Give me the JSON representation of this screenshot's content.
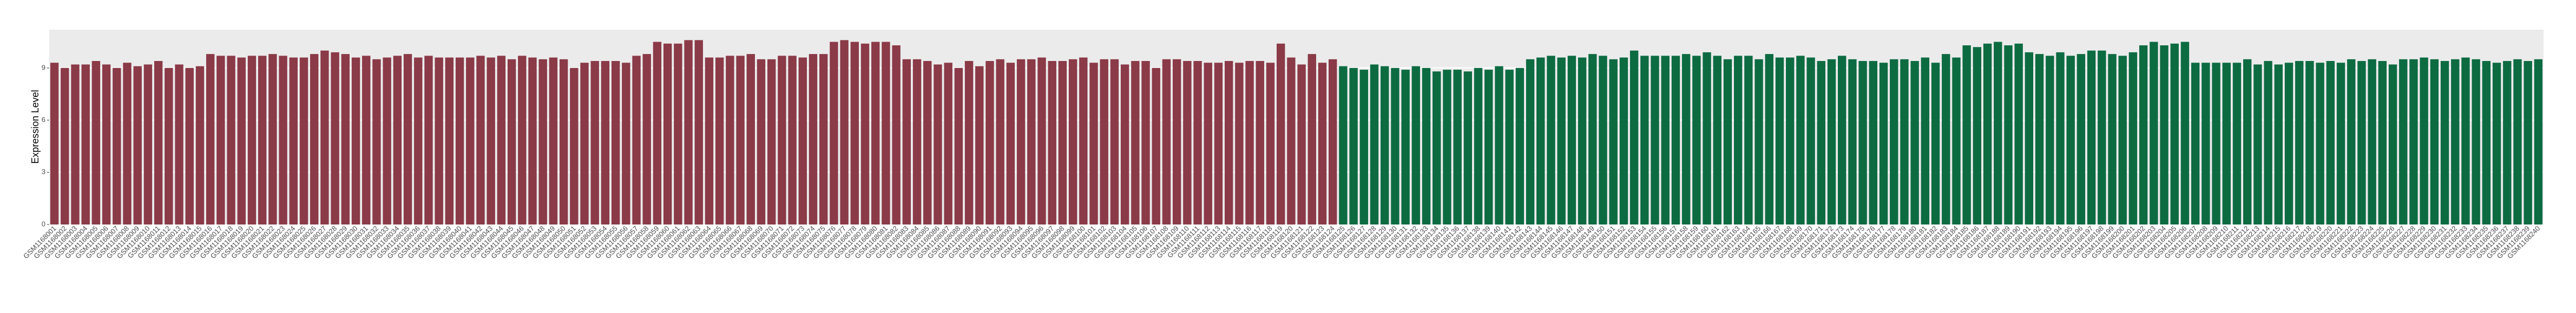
{
  "chart_data": {
    "type": "bar",
    "y_label": "Expression Level",
    "ylim": [
      0,
      11.2
    ],
    "yticks": [
      0,
      3,
      6,
      9
    ],
    "grid": true,
    "categories": [
      "GSM1168001",
      "GSM1168002",
      "GSM1168003",
      "GSM1168004",
      "GSM1168005",
      "GSM1168006",
      "GSM1168007",
      "GSM1168008",
      "GSM1168009",
      "GSM1168010",
      "GSM1168011",
      "GSM1168012",
      "GSM1168013",
      "GSM1168014",
      "GSM1168015",
      "GSM1168016",
      "GSM1168017",
      "GSM1168018",
      "GSM1168019",
      "GSM1168020",
      "GSM1168021",
      "GSM1168022",
      "GSM1168023",
      "GSM1168024",
      "GSM1168025",
      "GSM1168026",
      "GSM1168027",
      "GSM1168028",
      "GSM1168029",
      "GSM1168030",
      "GSM1168031",
      "GSM1168032",
      "GSM1168033",
      "GSM1168034",
      "GSM1168035",
      "GSM1168036",
      "GSM1168037",
      "GSM1168038",
      "GSM1168039",
      "GSM1168040",
      "GSM1168041",
      "GSM1168042",
      "GSM1168043",
      "GSM1168044",
      "GSM1168045",
      "GSM1168046",
      "GSM1168047",
      "GSM1168048",
      "GSM1168049",
      "GSM1168050",
      "GSM1168051",
      "GSM1168052",
      "GSM1168053",
      "GSM1168054",
      "GSM1168055",
      "GSM1168056",
      "GSM1168057",
      "GSM1168058",
      "GSM1168059",
      "GSM1168060",
      "GSM1168061",
      "GSM1168062",
      "GSM1168063",
      "GSM1168064",
      "GSM1168065",
      "GSM1168066",
      "GSM1168067",
      "GSM1168068",
      "GSM1168069",
      "GSM1168070",
      "GSM1168071",
      "GSM1168072",
      "GSM1168073",
      "GSM1168074",
      "GSM1168075",
      "GSM1168076",
      "GSM1168077",
      "GSM1168078",
      "GSM1168079",
      "GSM1168080",
      "GSM1168081",
      "GSM1168082",
      "GSM1168083",
      "GSM1168084",
      "GSM1168085",
      "GSM1168086",
      "GSM1168087",
      "GSM1168088",
      "GSM1168089",
      "GSM1168090",
      "GSM1168091",
      "GSM1168092",
      "GSM1168093",
      "GSM1168094",
      "GSM1168095",
      "GSM1168096",
      "GSM1168097",
      "GSM1168098",
      "GSM1168099",
      "GSM1168100",
      "GSM1168101",
      "GSM1168102",
      "GSM1168103",
      "GSM1168104",
      "GSM1168105",
      "GSM1168106",
      "GSM1168107",
      "GSM1168108",
      "GSM1168109",
      "GSM1168110",
      "GSM1168111",
      "GSM1168112",
      "GSM1168113",
      "GSM1168114",
      "GSM1168115",
      "GSM1168116",
      "GSM1168117",
      "GSM1168118",
      "GSM1168119",
      "GSM1168120",
      "GSM1168121",
      "GSM1168122",
      "GSM1168123",
      "GSM1168124",
      "GSM1168125",
      "GSM1168126",
      "GSM1168127",
      "GSM1168128",
      "GSM1168129",
      "GSM1168130",
      "GSM1168131",
      "GSM1168132",
      "GSM1168133",
      "GSM1168134",
      "GSM1168135",
      "GSM1168136",
      "GSM1168137",
      "GSM1168138",
      "GSM1168139",
      "GSM1168140",
      "GSM1168141",
      "GSM1168142",
      "GSM1168143",
      "GSM1168144",
      "GSM1168145",
      "GSM1168146",
      "GSM1168147",
      "GSM1168148",
      "GSM1168149",
      "GSM1168150",
      "GSM1168151",
      "GSM1168152",
      "GSM1168153",
      "GSM1168154",
      "GSM1168155",
      "GSM1168156",
      "GSM1168157",
      "GSM1168158",
      "GSM1168159",
      "GSM1168160",
      "GSM1168161",
      "GSM1168162",
      "GSM1168163",
      "GSM1168164",
      "GSM1168165",
      "GSM1168166",
      "GSM1168167",
      "GSM1168168",
      "GSM1168169",
      "GSM1168170",
      "GSM1168171",
      "GSM1168172",
      "GSM1168173",
      "GSM1168174",
      "GSM1168175",
      "GSM1168176",
      "GSM1168177",
      "GSM1168178",
      "GSM1168179",
      "GSM1168180",
      "GSM1168181",
      "GSM1168182",
      "GSM1168183",
      "GSM1168184",
      "GSM1168185",
      "GSM1168186",
      "GSM1168187",
      "GSM1168188",
      "GSM1168189",
      "GSM1168190",
      "GSM1168191",
      "GSM1168192",
      "GSM1168193",
      "GSM1168194",
      "GSM1168195",
      "GSM1168196",
      "GSM1168197",
      "GSM1168198",
      "GSM1168199",
      "GSM1168200",
      "GSM1168201",
      "GSM1168202",
      "GSM1168203",
      "GSM1168204",
      "GSM1168205",
      "GSM1168206",
      "GSM1168207",
      "GSM1168208",
      "GSM1168209",
      "GSM1168210",
      "GSM1168211",
      "GSM1168212",
      "GSM1168213",
      "GSM1168214",
      "GSM1168215",
      "GSM1168216",
      "GSM1168217",
      "GSM1168218",
      "GSM1168219",
      "GSM1168220",
      "GSM1168221",
      "GSM1168222",
      "GSM1168223",
      "GSM1168224",
      "GSM1168225",
      "GSM1168226",
      "GSM1168227",
      "GSM1168228",
      "GSM1168229",
      "GSM1168230",
      "GSM1168231",
      "GSM1168232",
      "GSM1168233",
      "GSM1168234",
      "GSM1168235",
      "GSM1168236",
      "GSM1168237",
      "GSM1168238",
      "GSM1168239",
      "GSM1168240"
    ],
    "series": [
      {
        "color": "#8b3a48",
        "values": [
          9.3,
          9.0,
          9.2,
          9.2,
          9.4,
          9.2,
          9.0,
          9.3,
          9.1,
          9.2,
          9.4,
          9.0,
          9.2,
          9.0,
          9.1,
          9.8,
          9.7,
          9.7,
          9.6,
          9.7,
          9.7,
          9.8,
          9.7,
          9.6,
          9.6,
          9.8,
          10.0,
          9.9,
          9.8,
          9.6,
          9.7,
          9.5,
          9.6,
          9.7,
          9.8,
          9.6,
          9.7,
          9.6,
          9.6,
          9.6,
          9.6,
          9.7,
          9.6,
          9.7,
          9.5,
          9.7,
          9.6,
          9.5,
          9.6,
          9.5,
          9.0,
          9.3,
          9.4,
          9.4,
          9.4,
          9.3,
          9.7,
          9.8,
          10.5,
          10.4,
          10.4,
          10.6,
          10.6,
          9.6,
          9.6,
          9.7,
          9.7,
          9.8,
          9.5,
          9.5,
          9.7,
          9.7,
          9.6,
          9.8,
          9.8,
          10.5,
          10.6,
          10.5,
          10.4,
          10.5,
          10.5,
          10.3,
          9.5,
          9.5,
          9.4,
          9.2,
          9.3,
          9.0,
          9.4,
          9.1,
          9.4,
          9.5,
          9.3,
          9.5,
          9.5,
          9.6,
          9.4,
          9.4,
          9.5,
          9.6,
          9.3,
          9.5,
          9.5,
          9.2,
          9.4,
          9.4,
          9.0,
          9.5,
          9.5,
          9.4,
          9.4,
          9.3,
          9.3,
          9.4,
          9.3,
          9.4,
          9.4,
          9.3,
          10.4,
          9.6,
          9.2,
          9.8,
          9.3,
          9.5,
          null,
          null,
          null,
          null,
          null,
          null,
          null,
          null,
          null,
          null,
          null,
          null,
          null,
          null,
          null,
          null,
          null,
          null,
          null,
          null,
          null,
          null,
          null,
          null,
          null,
          null,
          null,
          null,
          null,
          null,
          null,
          null,
          null,
          null,
          null,
          null,
          null,
          null,
          null,
          null,
          null,
          null,
          null,
          null,
          null,
          null,
          null,
          null,
          null,
          null,
          null,
          null,
          null,
          null,
          null,
          null,
          null,
          null,
          null,
          null,
          null,
          null,
          null,
          null,
          null,
          null,
          null,
          null,
          null,
          null,
          null,
          null,
          null,
          null,
          null,
          null,
          null,
          null,
          null,
          null,
          null,
          null,
          null,
          null,
          null,
          null,
          null,
          null,
          null,
          null,
          null,
          null,
          null,
          null,
          null,
          null,
          null,
          null,
          null,
          null,
          null,
          null,
          null,
          null,
          null,
          null,
          null,
          null,
          null,
          null,
          null,
          null,
          null,
          null,
          null,
          null
        ]
      },
      {
        "color": "#0d6b42",
        "values": [
          null,
          null,
          null,
          null,
          null,
          null,
          null,
          null,
          null,
          null,
          null,
          null,
          null,
          null,
          null,
          null,
          null,
          null,
          null,
          null,
          null,
          null,
          null,
          null,
          null,
          null,
          null,
          null,
          null,
          null,
          null,
          null,
          null,
          null,
          null,
          null,
          null,
          null,
          null,
          null,
          null,
          null,
          null,
          null,
          null,
          null,
          null,
          null,
          null,
          null,
          null,
          null,
          null,
          null,
          null,
          null,
          null,
          null,
          null,
          null,
          null,
          null,
          null,
          null,
          null,
          null,
          null,
          null,
          null,
          null,
          null,
          null,
          null,
          null,
          null,
          null,
          null,
          null,
          null,
          null,
          null,
          null,
          null,
          null,
          null,
          null,
          null,
          null,
          null,
          null,
          null,
          null,
          null,
          null,
          null,
          null,
          null,
          null,
          null,
          null,
          null,
          null,
          null,
          null,
          null,
          null,
          null,
          null,
          null,
          null,
          null,
          null,
          null,
          null,
          null,
          null,
          null,
          null,
          null,
          null,
          null,
          null,
          null,
          null,
          9.1,
          9.0,
          8.9,
          9.2,
          9.1,
          9.0,
          8.9,
          9.1,
          9.0,
          8.8,
          8.9,
          8.9,
          8.8,
          9.0,
          8.9,
          9.1,
          8.9,
          9.0,
          9.5,
          9.6,
          9.7,
          9.6,
          9.7,
          9.6,
          9.8,
          9.7,
          9.5,
          9.6,
          10.0,
          9.7,
          9.7,
          9.7,
          9.7,
          9.8,
          9.7,
          9.9,
          9.7,
          9.5,
          9.7,
          9.7,
          9.5,
          9.8,
          9.6,
          9.6,
          9.7,
          9.6,
          9.4,
          9.5,
          9.7,
          9.5,
          9.4,
          9.4,
          9.3,
          9.5,
          9.5,
          9.4,
          9.6,
          9.3,
          9.8,
          9.6,
          10.3,
          10.2,
          10.4,
          10.5,
          10.3,
          10.4,
          9.9,
          9.8,
          9.7,
          9.9,
          9.7,
          9.8,
          10.0,
          10.0,
          9.8,
          9.7,
          9.9,
          10.3,
          10.5,
          10.3,
          10.4,
          10.5,
          9.3,
          9.3,
          9.3,
          9.3,
          9.3,
          9.5,
          9.2,
          9.4,
          9.2,
          9.3,
          9.4,
          9.4,
          9.3,
          9.4,
          9.3,
          9.5,
          9.4,
          9.5,
          9.4,
          9.2,
          9.5,
          9.5,
          9.6,
          9.5,
          9.4,
          9.5,
          9.6,
          9.5,
          9.4,
          9.3,
          9.4,
          9.5,
          9.4,
          9.5
        ]
      }
    ]
  }
}
